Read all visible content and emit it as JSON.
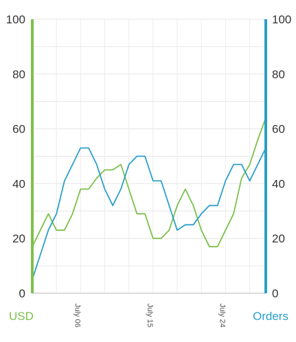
{
  "chart_data": {
    "type": "line",
    "x": [
      "July 01",
      "July 02",
      "July 03",
      "July 04",
      "July 05",
      "July 06",
      "July 07",
      "July 08",
      "July 09",
      "July 10",
      "July 11",
      "July 12",
      "July 13",
      "July 14",
      "July 15",
      "July 16",
      "July 17",
      "July 18",
      "July 19",
      "July 20",
      "July 21",
      "July 22",
      "July 23",
      "July 24",
      "July 25",
      "July 26",
      "July 27",
      "July 28",
      "July 29",
      "July 30"
    ],
    "x_tick_labels": [
      "July 06",
      "July 15",
      "July 24"
    ],
    "series": [
      {
        "name": "USD",
        "axis": "left",
        "color": "#7cc04c",
        "values": [
          17,
          23,
          29,
          23,
          23,
          29,
          38,
          38,
          42,
          45,
          45,
          47,
          38,
          29,
          29,
          20,
          20,
          23,
          32,
          38,
          32,
          23,
          17,
          17,
          23,
          29,
          42,
          47,
          56,
          64
        ]
      },
      {
        "name": "Orders",
        "axis": "right",
        "color": "#2a9fc9",
        "values": [
          5,
          14,
          23,
          29,
          41,
          47,
          53,
          53,
          47,
          38,
          32,
          38,
          47,
          50,
          50,
          41,
          41,
          32,
          23,
          25,
          25,
          29,
          32,
          32,
          41,
          47,
          47,
          41,
          47,
          53
        ]
      }
    ],
    "y_left": {
      "label": "USD",
      "ylim": [
        0,
        100
      ],
      "ticks": [
        "0",
        "20",
        "40",
        "60",
        "80",
        "100"
      ],
      "color": "#7cc04c"
    },
    "y_right": {
      "label": "Orders",
      "ylim": [
        0,
        100
      ],
      "ticks": [
        "0",
        "20",
        "40",
        "60",
        "80",
        "100"
      ],
      "color": "#2a9fc9"
    },
    "grid": true
  }
}
